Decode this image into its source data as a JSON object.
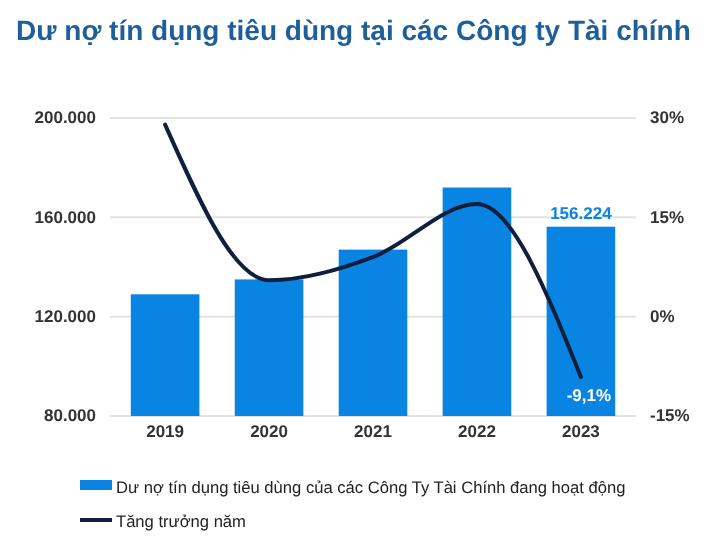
{
  "chart_data": {
    "type": "bar",
    "title": "Dư nợ tín dụng tiêu dùng tại các Công ty Tài chính",
    "categories": [
      "2019",
      "2020",
      "2021",
      "2022",
      "2023"
    ],
    "series": [
      {
        "name": "Dư nợ tín dụng tiêu dùng của các Công Ty Tài Chính đang hoạt động",
        "color": "#0a84e3",
        "values": [
          129000,
          135000,
          147000,
          172000,
          156224
        ],
        "value_labels": [
          null,
          null,
          null,
          null,
          "156.224"
        ]
      },
      {
        "name": "Tăng trưởng năm",
        "type": "line",
        "axis": "y2",
        "color": "#0f1f3d",
        "values": [
          29,
          5.5,
          9,
          17,
          -9.1
        ],
        "value_labels": [
          null,
          null,
          null,
          null,
          "-9,1%"
        ]
      }
    ],
    "ylim": [
      80000,
      200000
    ],
    "yticks": [
      {
        "value": 80000,
        "label": "80.000"
      },
      {
        "value": 120000,
        "label": "120.000"
      },
      {
        "value": 160000,
        "label": "160.000"
      },
      {
        "value": 200000,
        "label": "200.000"
      }
    ],
    "y2lim": [
      -15,
      30
    ],
    "y2ticks": [
      {
        "value": -15,
        "label": "-15%"
      },
      {
        "value": 0,
        "label": "0%"
      },
      {
        "value": 15,
        "label": "15%"
      },
      {
        "value": 30,
        "label": "30%"
      }
    ],
    "grid": "y",
    "legend": "bottom",
    "marker": "none",
    "line_style": "solid"
  }
}
